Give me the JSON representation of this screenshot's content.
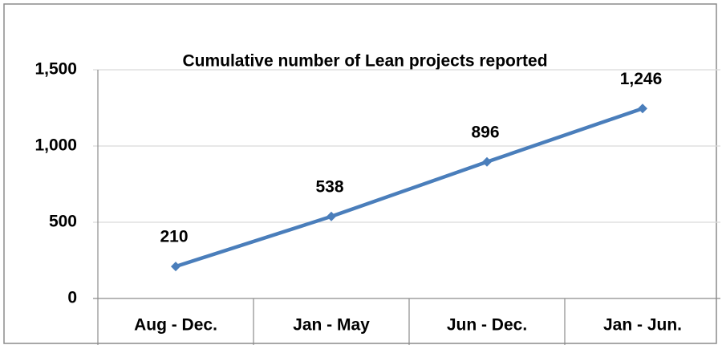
{
  "chart_data": {
    "type": "line",
    "title": "Cumulative number of Lean projects reported",
    "categories": [
      "Aug - Dec.",
      "Jan - May",
      "Jun - Dec.",
      "Jan - Jun."
    ],
    "values": [
      210,
      538,
      896,
      1246
    ],
    "value_labels": [
      "210",
      "538",
      "896",
      "1,246"
    ],
    "color": "#4a7ebb",
    "ylim": [
      0,
      1500
    ],
    "yticks": [
      0,
      500,
      {
        "value": 1000,
        "label": "1,000"
      },
      {
        "value": 1500,
        "label": "1,500"
      }
    ],
    "grid": true
  }
}
